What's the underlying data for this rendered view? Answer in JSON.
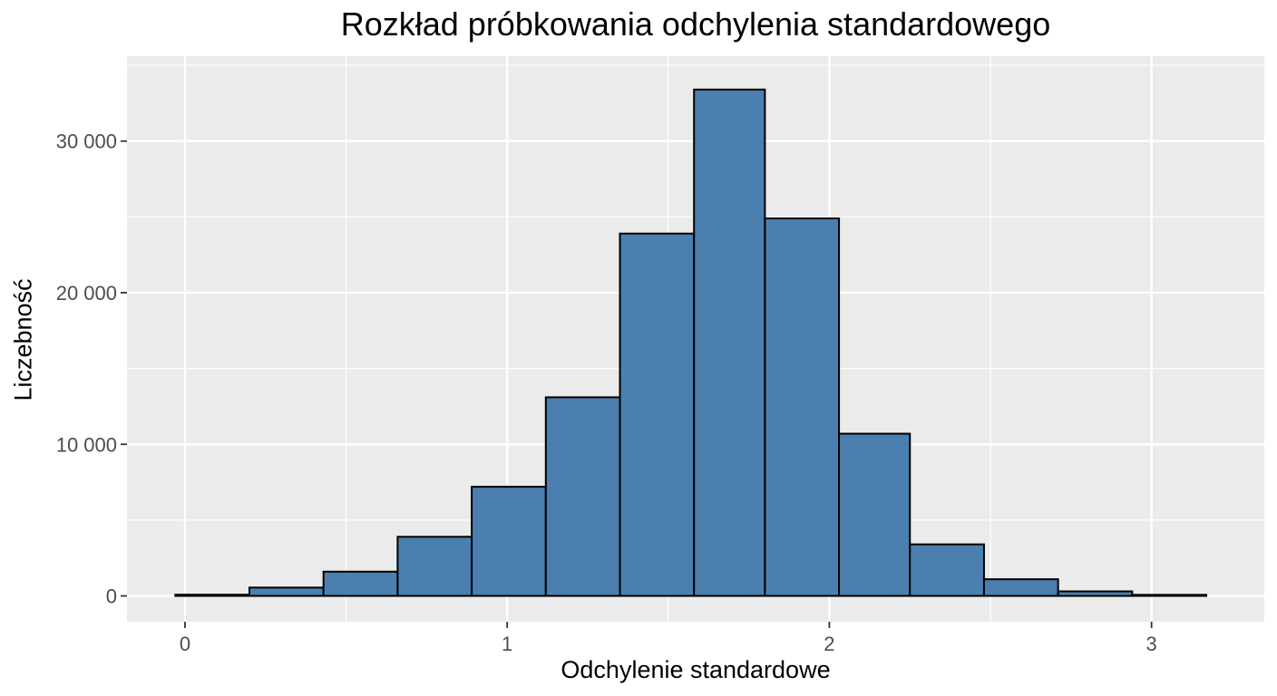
{
  "chart_data": {
    "type": "bar",
    "title": "Rozkład próbkowania odchylenia standardowego",
    "xlabel": "Odchylenie standardowe",
    "ylabel": "Liczebność",
    "bin_edges": [
      -0.03,
      0.2,
      0.43,
      0.66,
      0.89,
      1.12,
      1.35,
      1.58,
      1.8,
      2.03,
      2.25,
      2.48,
      2.71,
      2.94,
      3.17
    ],
    "values": [
      80,
      550,
      1600,
      3900,
      7200,
      13100,
      23900,
      33400,
      24900,
      10700,
      3400,
      1100,
      300,
      60
    ],
    "xlim": [
      -0.18,
      3.35
    ],
    "ylim": [
      -1700,
      35600
    ],
    "x_ticks": [
      0,
      1,
      2,
      3
    ],
    "x_tick_labels": [
      "0",
      "1",
      "2",
      "3"
    ],
    "y_ticks": [
      0,
      10000,
      20000,
      30000
    ],
    "y_tick_labels": [
      "0",
      "10 000",
      "20 000",
      "30 000"
    ],
    "grid": true,
    "colors": {
      "panel_background": "#ebebeb",
      "grid_line": "#ffffff",
      "bar_fill": "#4a7fb0",
      "bar_outline": "#000000"
    }
  }
}
